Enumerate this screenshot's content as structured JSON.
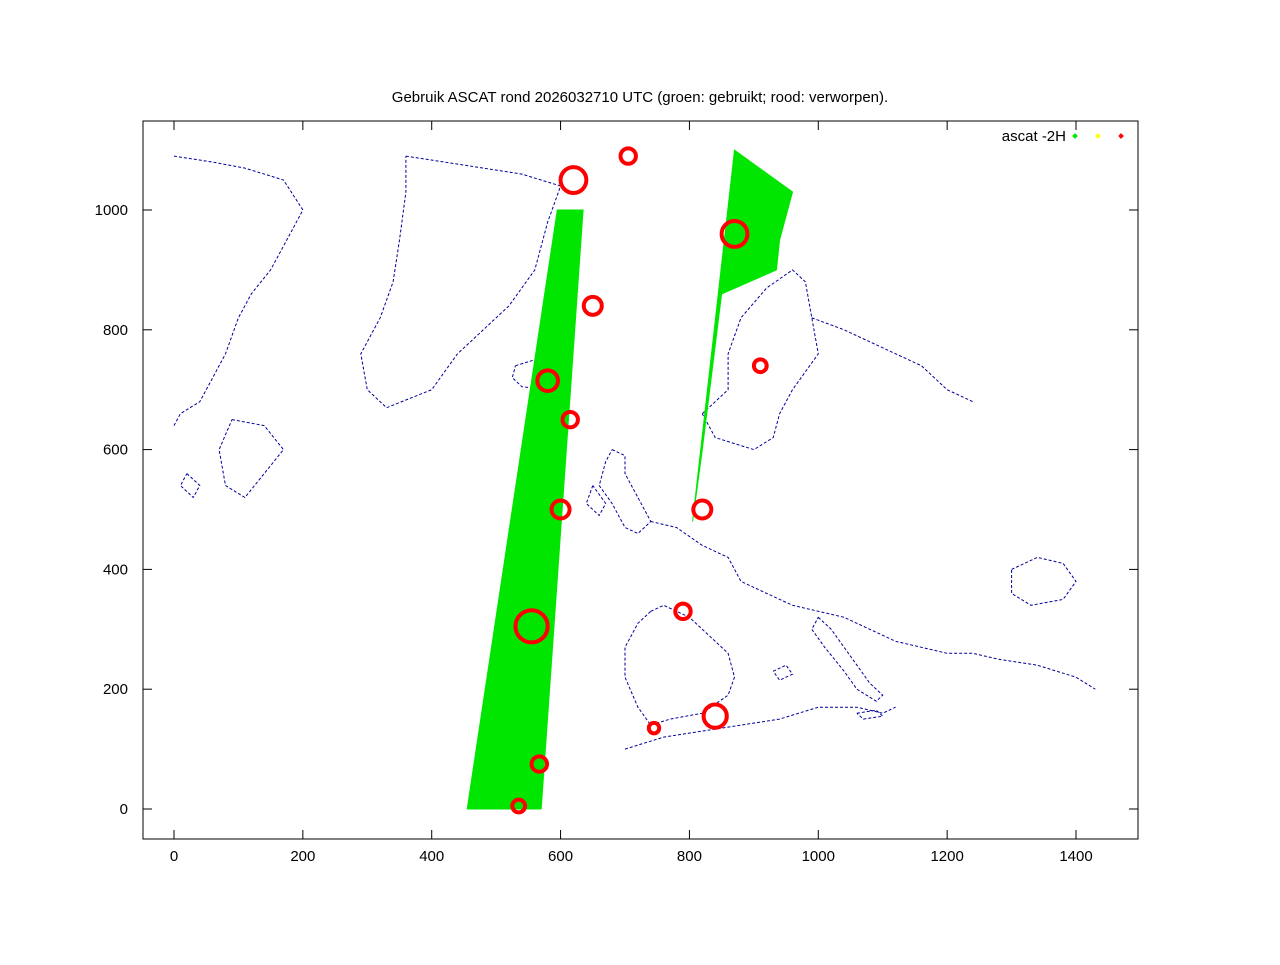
{
  "chart_data": {
    "type": "scatter",
    "title": "Gebruik ASCAT rond 2026032710 UTC (groen: gebruikt; rood: verworpen).",
    "xlim": [
      -50,
      1500
    ],
    "ylim": [
      -50,
      1150
    ],
    "xticks": [
      0,
      200,
      400,
      600,
      800,
      1000,
      1200,
      1400
    ],
    "yticks": [
      0,
      200,
      400,
      600,
      800,
      1000
    ],
    "grid": false,
    "legend_position": "top-right",
    "legend": [
      "ascat -2H",
      "",
      ""
    ],
    "colors": {
      "used": "#00e600",
      "unknown": "#ffff00",
      "rejected": "#ff0000",
      "coastline": "#00009a"
    },
    "series": [
      {
        "name": "ascat -2H",
        "role": "used",
        "swaths": [
          {
            "polygon": [
              [
                455,
                0
              ],
              [
                570,
                0
              ],
              [
                635,
                1000
              ],
              [
                595,
                1000
              ]
            ]
          },
          {
            "polygon": [
              [
                805,
                480
              ],
              [
                870,
                1100
              ],
              [
                960,
                1030
              ],
              [
                940,
                950
              ],
              [
                935,
                900
              ],
              [
                850,
                860
              ],
              [
                820,
                600
              ]
            ]
          }
        ]
      },
      {
        "name": "",
        "role": "unknown",
        "swaths": []
      },
      {
        "name": "",
        "role": "rejected",
        "clusters": [
          {
            "x": 535,
            "y": 5,
            "r": 10
          },
          {
            "x": 567,
            "y": 75,
            "r": 12
          },
          {
            "x": 555,
            "y": 305,
            "r": 25
          },
          {
            "x": 600,
            "y": 500,
            "r": 14
          },
          {
            "x": 615,
            "y": 650,
            "r": 12
          },
          {
            "x": 580,
            "y": 715,
            "r": 16
          },
          {
            "x": 650,
            "y": 840,
            "r": 14
          },
          {
            "x": 620,
            "y": 1050,
            "r": 20
          },
          {
            "x": 705,
            "y": 1090,
            "r": 12
          },
          {
            "x": 910,
            "y": 740,
            "r": 10
          },
          {
            "x": 790,
            "y": 330,
            "r": 12
          },
          {
            "x": 840,
            "y": 155,
            "r": 18
          },
          {
            "x": 745,
            "y": 135,
            "r": 8
          },
          {
            "x": 820,
            "y": 500,
            "r": 14
          },
          {
            "x": 870,
            "y": 960,
            "r": 20
          }
        ]
      }
    ]
  }
}
